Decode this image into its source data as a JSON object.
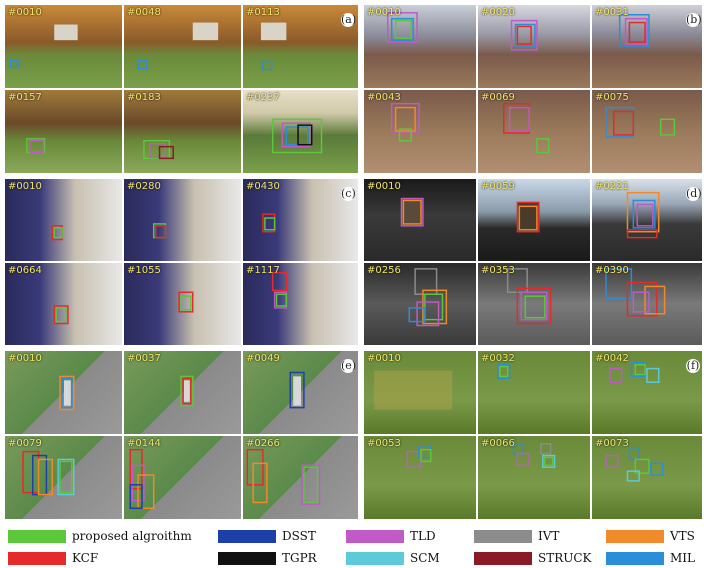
{
  "panels": {
    "a": {
      "letter": "(a)",
      "frames": [
        "#0010",
        "#0048",
        "#0113",
        "#0157",
        "#0183",
        "#0237"
      ]
    },
    "b": {
      "letter": "(b)",
      "frames": [
        "#0010",
        "#0020",
        "#0031",
        "#0043",
        "#0069",
        "#0075"
      ]
    },
    "c": {
      "letter": "(c)",
      "frames": [
        "#0010",
        "#0280",
        "#0430",
        "#0664",
        "#1055",
        "#1117"
      ]
    },
    "d": {
      "letter": "(d)",
      "frames": [
        "#0010",
        "#0059",
        "#0221",
        "#0256",
        "#0353",
        "#0390"
      ]
    },
    "e": {
      "letter": "(e)",
      "frames": [
        "#0010",
        "#0037",
        "#0049",
        "#0079",
        "#0144",
        "#0266"
      ]
    },
    "f": {
      "letter": "(f)",
      "frames": [
        "#0010",
        "#0032",
        "#0042",
        "#0053",
        "#0066",
        "#0073"
      ]
    }
  },
  "legend": {
    "items": [
      {
        "label": "proposed algroithm",
        "color": "#5cc73a"
      },
      {
        "label": "DSST",
        "color": "#1c3fa8"
      },
      {
        "label": "TLD",
        "color": "#c05ac8"
      },
      {
        "label": "IVT",
        "color": "#8c8c8c"
      },
      {
        "label": "VTS",
        "color": "#f08a2a"
      },
      {
        "label": "KCF",
        "color": "#e42a2a"
      },
      {
        "label": "TGPR",
        "color": "#111111"
      },
      {
        "label": "SCM",
        "color": "#5ccad8"
      },
      {
        "label": "STRUCK",
        "color": "#8a1a26"
      },
      {
        "label": "MIL",
        "color": "#2a8ed8"
      }
    ]
  }
}
